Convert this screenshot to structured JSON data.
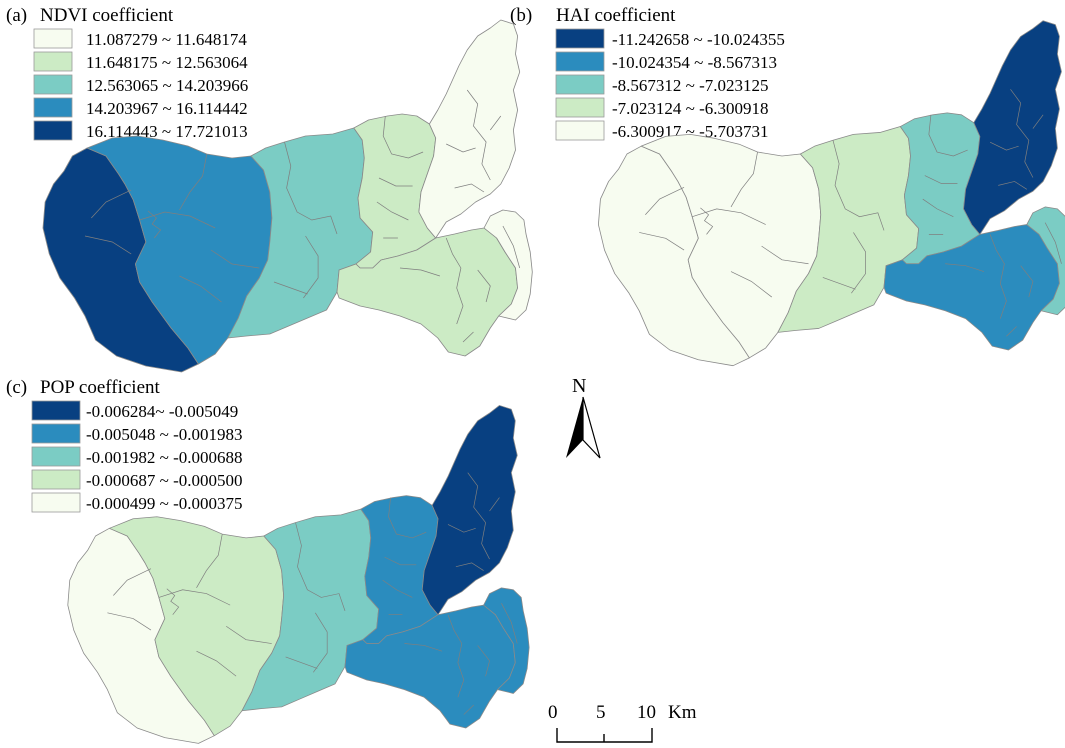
{
  "palette": [
    "#f7fcf0",
    "#ccebc5",
    "#7bccc4",
    "#2b8cbe",
    "#084081"
  ],
  "panels": [
    {
      "tag": "(a)",
      "title": "NDVI coefficient",
      "legend": [
        {
          "range": "11.087279 ~ 11.648174",
          "color": "#f7fcf0"
        },
        {
          "range": "11.648175 ~ 12.563064",
          "color": "#ccebc5"
        },
        {
          "range": "12.563065 ~ 14.203966",
          "color": "#7bccc4"
        },
        {
          "range": "14.203967 ~ 16.114442",
          "color": "#2b8cbe"
        },
        {
          "range": "16.114443 ~ 17.721013",
          "color": "#084081"
        }
      ],
      "zone_classes": {
        "W": 4,
        "CW": 3,
        "C": 2,
        "E1": 1,
        "SE": 1,
        "N": 0,
        "FE": 0
      }
    },
    {
      "tag": "(b)",
      "title": "HAI coefficient",
      "legend": [
        {
          "range": "-11.242658 ~ -10.024355",
          "color": "#084081"
        },
        {
          "range": "-10.024354 ~ -8.567313",
          "color": "#2b8cbe"
        },
        {
          "range": "-8.567312 ~ -7.023125",
          "color": "#7bccc4"
        },
        {
          "range": "-7.023124 ~ -6.300918",
          "color": "#ccebc5"
        },
        {
          "range": "-6.300917 ~ -5.703731",
          "color": "#f7fcf0"
        }
      ],
      "zone_classes": {
        "W": 0,
        "CW": 0,
        "C": 1,
        "E1": 2,
        "SE": 3,
        "N": 4,
        "FE": 2
      }
    },
    {
      "tag": "(c)",
      "title": "POP coefficient",
      "legend": [
        {
          "range": "-0.006284~ -0.005049",
          "color": "#084081"
        },
        {
          "range": "-0.005048 ~ -0.001983",
          "color": "#2b8cbe"
        },
        {
          "range": "-0.001982 ~ -0.000688",
          "color": "#7bccc4"
        },
        {
          "range": "-0.000687 ~ -0.000500",
          "color": "#ccebc5"
        },
        {
          "range": "-0.000499 ~ -0.000375",
          "color": "#f7fcf0"
        }
      ],
      "zone_classes": {
        "W": 0,
        "CW": 1,
        "C": 2,
        "E1": 3,
        "SE": 3,
        "N": 4,
        "FE": 3
      }
    }
  ],
  "north_arrow": {
    "label": "N"
  },
  "scale_bar": {
    "ticks": [
      "0",
      "5",
      "10"
    ],
    "unit": "Km"
  }
}
